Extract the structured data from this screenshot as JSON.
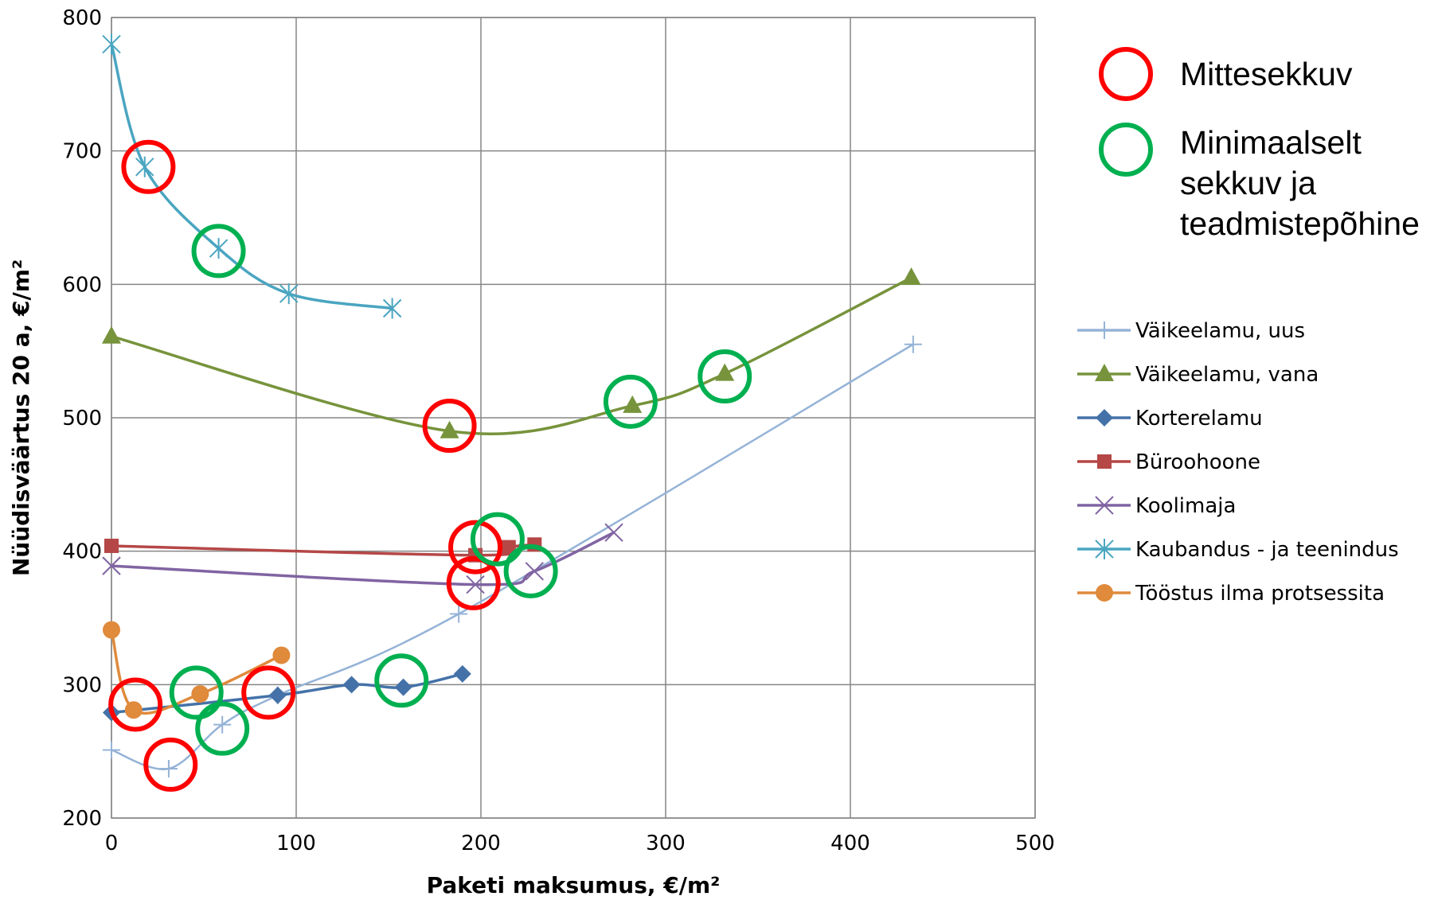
{
  "chart_data": {
    "type": "line",
    "title": "",
    "xlabel": "Paketi maksumus, €/m²",
    "ylabel": "Nüüdisväärtus 20 a, €/m²",
    "xlim": [
      0,
      500
    ],
    "ylim": [
      200,
      800
    ],
    "xticks": [
      "0",
      "100",
      "200",
      "300",
      "400",
      "500"
    ],
    "yticks": [
      "200",
      "300",
      "400",
      "500",
      "600",
      "700",
      "800"
    ],
    "grid": true,
    "legend_position": "right",
    "series": [
      {
        "name": "Väikeelamu, uus",
        "color": "#95b3d7",
        "marker": "plus",
        "points": [
          [
            0,
            251
          ],
          [
            31,
            237
          ],
          [
            60,
            270
          ],
          [
            90,
            292
          ],
          [
            188,
            353
          ],
          [
            434,
            555
          ]
        ]
      },
      {
        "name": "Väikeelamu, vana",
        "color": "#77933c",
        "marker": "triangle",
        "points": [
          [
            0,
            561
          ],
          [
            183,
            490
          ],
          [
            282,
            509
          ],
          [
            332,
            533
          ],
          [
            433,
            605
          ]
        ]
      },
      {
        "name": "Korterelamu",
        "color": "#4472a8",
        "marker": "diamond",
        "points": [
          [
            0,
            279
          ],
          [
            90,
            292
          ],
          [
            130,
            300
          ],
          [
            158,
            298
          ],
          [
            190,
            308
          ]
        ]
      },
      {
        "name": "Büroohoone",
        "color": "#b54747",
        "marker": "square",
        "points": [
          [
            0,
            404
          ],
          [
            197,
            397
          ],
          [
            215,
            403
          ],
          [
            229,
            405
          ]
        ]
      },
      {
        "name": "Koolimaja",
        "color": "#8064a2",
        "marker": "x",
        "points": [
          [
            0,
            389
          ],
          [
            197,
            375
          ],
          [
            229,
            385
          ],
          [
            272,
            414
          ]
        ]
      },
      {
        "name": "Kaubandus - ja teenindus",
        "color": "#4aa5c1",
        "marker": "asterisk",
        "points": [
          [
            0,
            780
          ],
          [
            18,
            688
          ],
          [
            58,
            627
          ],
          [
            96,
            593
          ],
          [
            152,
            582
          ]
        ]
      },
      {
        "name": "Tööstus ilma protsessita",
        "color": "#e08a3c",
        "marker": "circle",
        "points": [
          [
            0,
            341
          ],
          [
            12,
            281
          ],
          [
            48,
            293
          ],
          [
            92,
            322
          ]
        ]
      }
    ],
    "highlight_legend": [
      {
        "label": "Mittesekkuv",
        "color": "#ff0000"
      },
      {
        "label_lines": [
          "Minimaalselt",
          "sekkuv ja",
          "teadmistepõhine"
        ],
        "color": "#00b050"
      }
    ],
    "highlights": [
      {
        "type": "Mittesekkuv",
        "x": 20,
        "y": 688
      },
      {
        "type": "Mittesekkuv",
        "x": 183,
        "y": 494
      },
      {
        "type": "Mittesekkuv",
        "x": 197,
        "y": 403
      },
      {
        "type": "Mittesekkuv",
        "x": 196,
        "y": 376
      },
      {
        "type": "Mittesekkuv",
        "x": 13,
        "y": 285
      },
      {
        "type": "Mittesekkuv",
        "x": 32,
        "y": 240
      },
      {
        "type": "Mittesekkuv",
        "x": 85,
        "y": 294
      },
      {
        "type": "Minimaalselt",
        "x": 58,
        "y": 625
      },
      {
        "type": "Minimaalselt",
        "x": 281,
        "y": 512
      },
      {
        "type": "Minimaalselt",
        "x": 332,
        "y": 531
      },
      {
        "type": "Minimaalselt",
        "x": 209,
        "y": 409
      },
      {
        "type": "Minimaalselt",
        "x": 227,
        "y": 385
      },
      {
        "type": "Minimaalselt",
        "x": 157,
        "y": 303
      },
      {
        "type": "Minimaalselt",
        "x": 46,
        "y": 294
      },
      {
        "type": "Minimaalselt",
        "x": 60,
        "y": 267
      }
    ]
  }
}
